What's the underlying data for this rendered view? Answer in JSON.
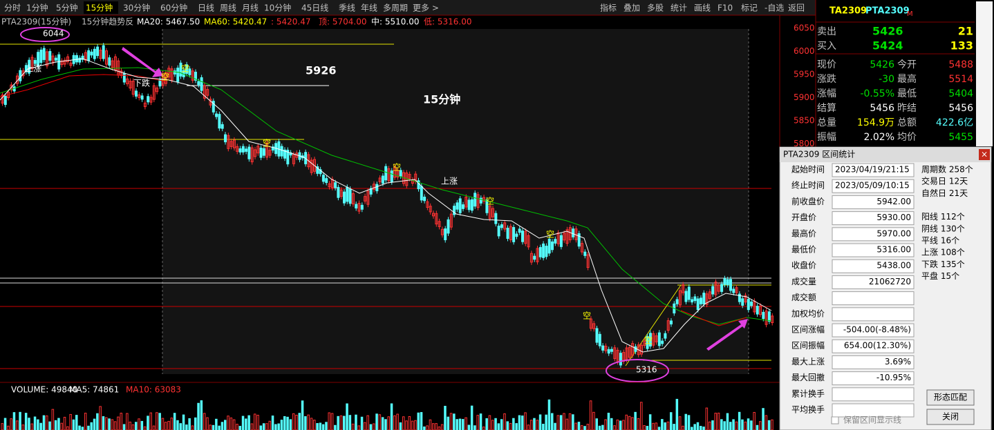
{
  "toolbar": {
    "tabs": [
      "分时",
      "1分钟",
      "5分钟",
      "15分钟",
      "30分钟",
      "60分钟",
      "日线",
      "周线",
      "月线",
      "10分钟",
      "45日线",
      "季线",
      "年线",
      "多周期",
      "更多 >"
    ],
    "active": "15分钟",
    "buttons": [
      "指标",
      "叠加",
      "多股",
      "统计",
      "画线",
      "F10",
      "标记",
      "-自选",
      "返回"
    ]
  },
  "info": {
    "symbol": "PTA2309(15分钟)",
    "indicator": "15分钟趋势反",
    "items": [
      "MA20: 5467.50",
      "MA60: 5420.47",
      ": 5420.47",
      "顶: 5704.00",
      "中: 5510.00",
      "低: 5316.00"
    ]
  },
  "price_axis": [
    "6050",
    "6000",
    "5950",
    "5900",
    "5850",
    "5800"
  ],
  "annotations": {
    "high": "6044",
    "mid": "5926",
    "period": "15分钟",
    "low": "5316",
    "up": "上涨",
    "down": "下跌",
    "gap": "空"
  },
  "volume": {
    "label": "VOLUME: 49840",
    "ma5": "MA5: 74861",
    "ma10": "MA10: 63083"
  },
  "quote": {
    "code": "TA2309",
    "name": "PTA2309",
    "flag": "M",
    "book": [
      {
        "label": "卖出",
        "price": "5426",
        "qty": "21"
      },
      {
        "label": "买入",
        "price": "5424",
        "qty": "133"
      }
    ],
    "rows": [
      [
        "现价",
        "5426",
        "今开",
        "5488"
      ],
      [
        "涨跌",
        "-30",
        "最高",
        "5514"
      ],
      [
        "涨幅",
        "-0.55%",
        "最低",
        "5404"
      ],
      [
        "结算",
        "5456",
        "昨结",
        "5456"
      ],
      [
        "总量",
        "154.9万",
        "总额",
        "422.6亿"
      ],
      [
        "振幅",
        "2.02%",
        "均价",
        "5455"
      ]
    ]
  },
  "dialog": {
    "title": "PTA2309 区间统计",
    "rows": [
      {
        "label": "起始时间",
        "value": "2023/04/19/21:15"
      },
      {
        "label": "终止时间",
        "value": "2023/05/09/10:15"
      },
      {
        "label": "前收盘价",
        "value": "5942.00"
      },
      {
        "label": "开盘价",
        "value": "5930.00"
      },
      {
        "label": "最高价",
        "value": "5970.00"
      },
      {
        "label": "最低价",
        "value": "5316.00"
      },
      {
        "label": "收盘价",
        "value": "5438.00"
      },
      {
        "label": "成交量",
        "value": "21062720"
      },
      {
        "label": "成交额"
      },
      {
        "label": "加权均价"
      },
      {
        "label": "区间涨幅",
        "value": "-504.00(-8.48%)"
      },
      {
        "label": "区间振幅",
        "value": "654.00(12.30%)"
      },
      {
        "label": "最大上涨",
        "value": "3.69%"
      },
      {
        "label": "最大回撤",
        "value": "-10.95%"
      },
      {
        "label": "累计换手"
      },
      {
        "label": "平均换手"
      }
    ],
    "stats": [
      "周期数 258个",
      "交易日 12天",
      "自然日 21天",
      "阳线 112个",
      "阴线 130个",
      "平线 16个",
      "上涨 108个",
      "下跌 135个",
      "平盘 15个"
    ],
    "buttons": [
      "形态匹配",
      "关闭"
    ],
    "checkbox": "保留区间显示线"
  }
}
